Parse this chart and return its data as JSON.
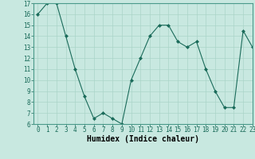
{
  "x": [
    0,
    1,
    2,
    3,
    4,
    5,
    6,
    7,
    8,
    9,
    10,
    11,
    12,
    13,
    14,
    15,
    16,
    17,
    18,
    19,
    20,
    21,
    22,
    23
  ],
  "y": [
    16,
    17,
    17,
    14,
    11,
    8.5,
    6.5,
    7,
    6.5,
    6,
    10,
    12,
    14,
    15,
    15,
    13.5,
    13,
    13.5,
    11,
    9,
    7.5,
    7.5,
    14.5,
    13
  ],
  "xlabel": "Humidex (Indice chaleur)",
  "ylim": [
    6,
    17
  ],
  "xlim": [
    -0.5,
    23
  ],
  "yticks": [
    6,
    7,
    8,
    9,
    10,
    11,
    12,
    13,
    14,
    15,
    16,
    17
  ],
  "xticks": [
    0,
    1,
    2,
    3,
    4,
    5,
    6,
    7,
    8,
    9,
    10,
    11,
    12,
    13,
    14,
    15,
    16,
    17,
    18,
    19,
    20,
    21,
    22,
    23
  ],
  "line_color": "#1a6b5a",
  "marker_color": "#1a6b5a",
  "bg_color": "#c8e8e0",
  "grid_color": "#aad4c8",
  "xlabel_fontsize": 7,
  "tick_fontsize": 5.5,
  "marker_size": 2.0,
  "line_width": 0.8
}
